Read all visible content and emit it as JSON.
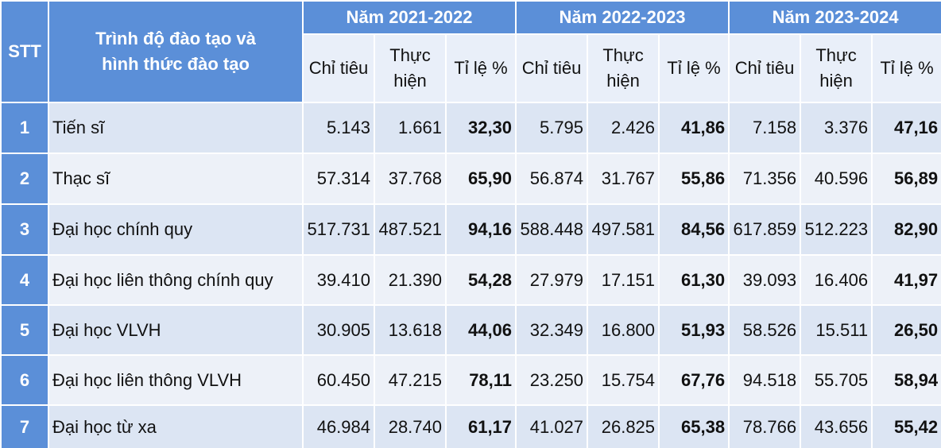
{
  "table": {
    "stt_header": "STT",
    "name_header": "Trình độ đào tạo và hình thức đào tạo",
    "years": [
      "Năm 2021-2022",
      "Năm 2022-2023",
      "Năm 2023-2024"
    ],
    "subheaders": [
      "Chỉ tiêu",
      "Thực hiện",
      "Tỉ lệ %"
    ],
    "rows": [
      {
        "stt": "1",
        "name": "Tiến sĩ",
        "cells": [
          "5.143",
          "1.661",
          "32,30",
          "5.795",
          "2.426",
          "41,86",
          "7.158",
          "3.376",
          "47,16"
        ]
      },
      {
        "stt": "2",
        "name": "Thạc sĩ",
        "cells": [
          "57.314",
          "37.768",
          "65,90",
          "56.874",
          "31.767",
          "55,86",
          "71.356",
          "40.596",
          "56,89"
        ]
      },
      {
        "stt": "3",
        "name": "Đại học chính quy",
        "cells": [
          "517.731",
          "487.521",
          "94,16",
          "588.448",
          "497.581",
          "84,56",
          "617.859",
          "512.223",
          "82,90"
        ]
      },
      {
        "stt": "4",
        "name": "Đại học liên thông chính quy",
        "cells": [
          "39.410",
          "21.390",
          "54,28",
          "27.979",
          "17.151",
          "61,30",
          "39.093",
          "16.406",
          "41,97"
        ]
      },
      {
        "stt": "5",
        "name": "Đại học VLVH",
        "cells": [
          "30.905",
          "13.618",
          "44,06",
          "32.349",
          "16.800",
          "51,93",
          "58.526",
          "15.511",
          "26,50"
        ]
      },
      {
        "stt": "6",
        "name": "Đại học liên thông VLVH",
        "cells": [
          "60.450",
          "47.215",
          "78,11",
          "23.250",
          "15.754",
          "67,76",
          "94.518",
          "55.705",
          "58,94"
        ]
      },
      {
        "stt": "7",
        "name": "Đại học từ xa",
        "cells": [
          "46.984",
          "28.740",
          "61,17",
          "41.027",
          "26.825",
          "65,38",
          "78.766",
          "43.656",
          "55,42"
        ]
      }
    ]
  }
}
